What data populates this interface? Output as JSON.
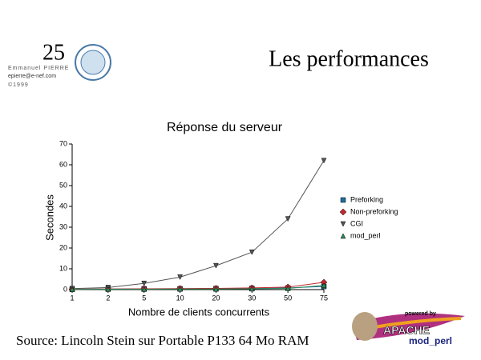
{
  "header": {
    "page_number": "25",
    "author": "Emmanuel PIERRE",
    "email": "epierre@e-nef.com",
    "copyright": "©1999",
    "title": "Les performances"
  },
  "footer": {
    "source": "Source: Lincoln Stein sur Portable P133 64 Mo RAM",
    "logo_powered": "powered by",
    "logo_apache": "APACHE",
    "logo_modperl": "mod_perl"
  },
  "chart_data": {
    "type": "line",
    "title": "Réponse du serveur",
    "x_label": "Nombre de clients concurrents",
    "y_label": "Secondes",
    "categories": [
      "1",
      "2",
      "5",
      "10",
      "20",
      "30",
      "50",
      "75"
    ],
    "ylim": [
      0,
      70
    ],
    "yticks": [
      0,
      10,
      20,
      30,
      40,
      50,
      60,
      70
    ],
    "legend": "right",
    "series": [
      {
        "name": "Preforking",
        "color": "#1f6f9f",
        "marker": "square",
        "values": [
          0.2,
          0.3,
          0.4,
          0.4,
          0.5,
          0.6,
          0.8,
          1.5
        ]
      },
      {
        "name": "Non-preforking",
        "color": "#c0282d",
        "marker": "diamond",
        "values": [
          0.2,
          0.3,
          0.4,
          0.5,
          0.6,
          0.8,
          1.2,
          3.5
        ]
      },
      {
        "name": "CGI",
        "color": "#555555",
        "marker": "triangle-down",
        "values": [
          0.5,
          1,
          3,
          6,
          11.5,
          18,
          34,
          62
        ]
      },
      {
        "name": "mod_perl",
        "color": "#2e8b57",
        "marker": "triangle-up",
        "values": [
          0.1,
          0.2,
          0.2,
          0.3,
          0.3,
          0.4,
          0.6,
          2
        ]
      }
    ]
  }
}
